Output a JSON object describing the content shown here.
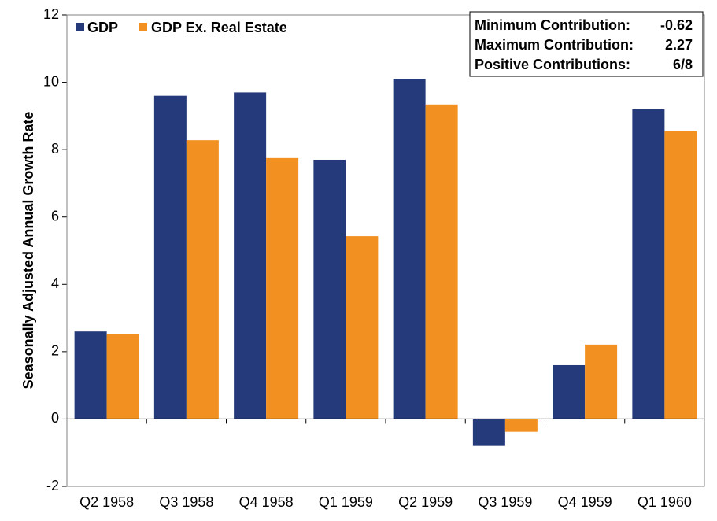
{
  "chart_data": {
    "type": "bar",
    "categories": [
      "Q2 1958",
      "Q3 1958",
      "Q4 1958",
      "Q1 1959",
      "Q2 1959",
      "Q3 1959",
      "Q4 1959",
      "Q1 1960"
    ],
    "series": [
      {
        "name": "GDP",
        "color": "#253a7a",
        "values": [
          2.6,
          9.6,
          9.7,
          7.7,
          10.1,
          -0.8,
          1.6,
          9.2
        ]
      },
      {
        "name": "GDP Ex. Real Estate",
        "color": "#f29121",
        "values": [
          2.52,
          8.28,
          7.75,
          5.43,
          9.34,
          -0.38,
          2.21,
          8.55
        ]
      }
    ],
    "title": "",
    "xlabel": "",
    "ylabel": "Seasonally Adjusted Annual Growth Rate",
    "ylim": [
      -2,
      12
    ],
    "yticks": [
      "-2",
      "0",
      "2",
      "4",
      "6",
      "8",
      "10",
      "12"
    ],
    "grid": false,
    "legend": "top-left",
    "stats": [
      {
        "label": "Minimum Contribution:",
        "value": "-0.62"
      },
      {
        "label": "Maximum Contribution:",
        "value": "2.27"
      },
      {
        "label": "Positive Contributions:",
        "value": "6/8"
      }
    ]
  }
}
